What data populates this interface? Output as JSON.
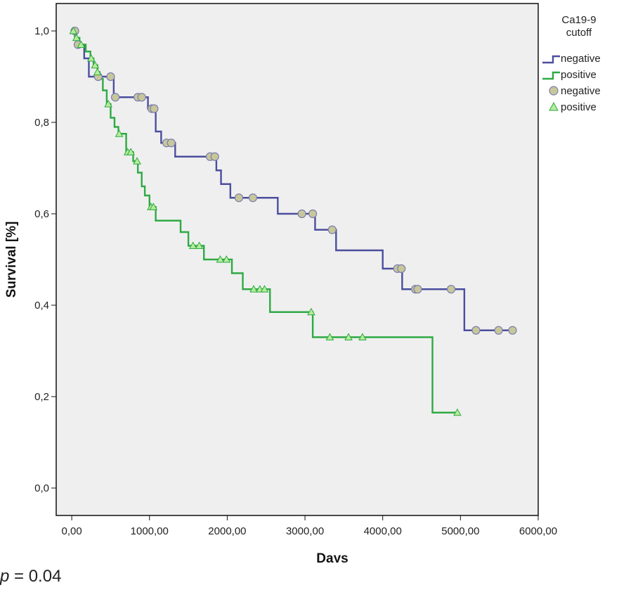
{
  "chart_data": {
    "type": "line",
    "title": "",
    "xlabel": "Days",
    "ylabel": "Survival [%]",
    "xlim": [
      -200,
      6000
    ],
    "ylim": [
      -0.06,
      1.06
    ],
    "x_ticks": [
      0,
      1000,
      2000,
      3000,
      4000,
      5000,
      6000
    ],
    "x_tick_labels": [
      "0,00",
      "1000,00",
      "2000,00",
      "3000,00",
      "4000,00",
      "5000,00",
      "6000,00"
    ],
    "y_ticks": [
      0.0,
      0.2,
      0.4,
      0.6,
      0.8,
      1.0
    ],
    "y_tick_labels": [
      "0,0",
      "0,2",
      "0,4",
      "0,6",
      "0,8",
      "1,0"
    ],
    "grid": false,
    "legend": {
      "title_lines": [
        "Ca19-9",
        "cutoff"
      ],
      "placement": "right",
      "entries": [
        {
          "label": "negative",
          "kind": "line",
          "color": "#4b4e9e"
        },
        {
          "label": "positive",
          "kind": "line",
          "color": "#2eaa44"
        },
        {
          "label": "negative",
          "kind": "circle",
          "color": "#c7c79a"
        },
        {
          "label": "positive",
          "kind": "triangle",
          "color": "#b6ec9a"
        }
      ]
    },
    "series": [
      {
        "name": "negative",
        "color": "#4b4e9e",
        "marker": "circle",
        "marker_fill": "#c7c79a",
        "marker_stroke": "#7a7eb0",
        "steps": [
          [
            0,
            1.0
          ],
          [
            60,
            0.97
          ],
          [
            160,
            0.94
          ],
          [
            220,
            0.9
          ],
          [
            340,
            0.9
          ],
          [
            540,
            0.855
          ],
          [
            980,
            0.83
          ],
          [
            1080,
            0.78
          ],
          [
            1150,
            0.755
          ],
          [
            1330,
            0.725
          ],
          [
            1860,
            0.695
          ],
          [
            1920,
            0.665
          ],
          [
            2040,
            0.635
          ],
          [
            2650,
            0.6
          ],
          [
            3130,
            0.565
          ],
          [
            3400,
            0.52
          ],
          [
            4000,
            0.48
          ],
          [
            4250,
            0.435
          ],
          [
            5050,
            0.345
          ],
          [
            5670,
            0.345
          ]
        ],
        "censored_x": [
          40,
          80,
          340,
          500,
          560,
          850,
          900,
          1030,
          1060,
          1220,
          1280,
          1780,
          1840,
          2150,
          2330,
          2960,
          3100,
          3350,
          4190,
          4240,
          4420,
          4450,
          4880,
          5200,
          5490,
          5670
        ]
      },
      {
        "name": "positive",
        "color": "#2eaa44",
        "marker": "triangle",
        "marker_fill": "#b6ec9a",
        "marker_stroke": "#2eaa44",
        "steps": [
          [
            0,
            1.0
          ],
          [
            40,
            0.985
          ],
          [
            100,
            0.97
          ],
          [
            180,
            0.955
          ],
          [
            240,
            0.94
          ],
          [
            280,
            0.925
          ],
          [
            330,
            0.91
          ],
          [
            360,
            0.895
          ],
          [
            400,
            0.87
          ],
          [
            450,
            0.84
          ],
          [
            500,
            0.81
          ],
          [
            550,
            0.79
          ],
          [
            600,
            0.775
          ],
          [
            700,
            0.735
          ],
          [
            790,
            0.715
          ],
          [
            850,
            0.69
          ],
          [
            900,
            0.66
          ],
          [
            940,
            0.64
          ],
          [
            1000,
            0.615
          ],
          [
            1080,
            0.585
          ],
          [
            1400,
            0.56
          ],
          [
            1500,
            0.53
          ],
          [
            1700,
            0.5
          ],
          [
            2060,
            0.47
          ],
          [
            2200,
            0.435
          ],
          [
            2550,
            0.385
          ],
          [
            3100,
            0.33
          ],
          [
            4640,
            0.165
          ],
          [
            4960,
            0.165
          ]
        ],
        "censored_x": [
          20,
          60,
          120,
          250,
          300,
          330,
          470,
          610,
          720,
          760,
          840,
          1020,
          1050,
          1560,
          1640,
          1910,
          1990,
          2340,
          2420,
          2480,
          3080,
          3320,
          3560,
          3740,
          4960
        ]
      }
    ]
  },
  "annotation": {
    "p_var": "p",
    "p_rest": " = 0.04"
  }
}
